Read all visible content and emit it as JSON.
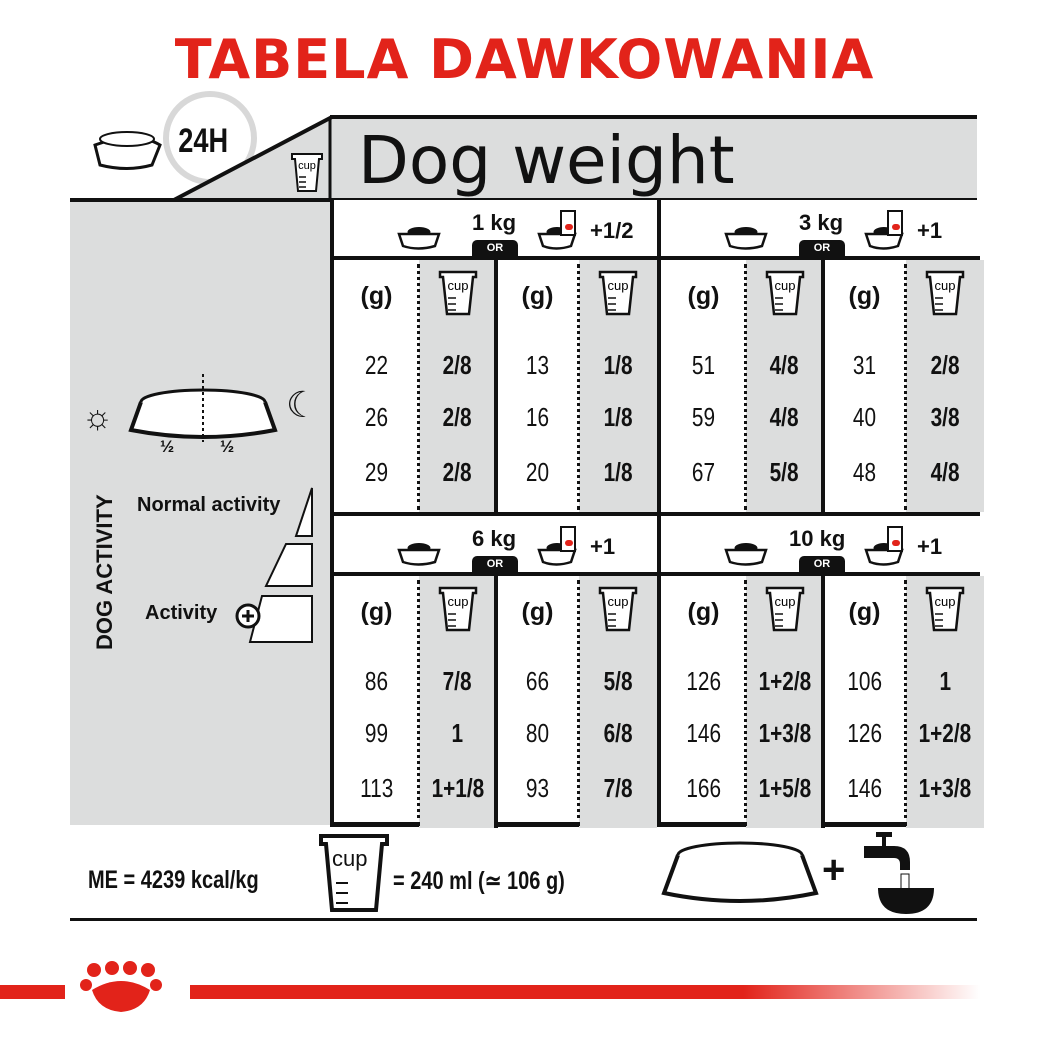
{
  "title": "TABELA DAWKOWANIA",
  "header": {
    "time_label": "24H",
    "main_title": "Dog weight",
    "cup_label": "cup"
  },
  "left_panel": {
    "half_left": "½",
    "half_right": "½",
    "vertical_label": "DOG ACTIVITY",
    "normal_activity": "Normal activity",
    "activity": "Activity"
  },
  "col_headers": {
    "grams": "(g)",
    "cup": "cup"
  },
  "or_label": "OR",
  "quadrants": [
    {
      "weight": "1 kg",
      "wet_addition": "+1/2",
      "dry_only": [
        [
          "22",
          "2/8"
        ],
        [
          "26",
          "2/8"
        ],
        [
          "29",
          "2/8"
        ]
      ],
      "with_wet": [
        [
          "13",
          "1/8"
        ],
        [
          "16",
          "1/8"
        ],
        [
          "20",
          "1/8"
        ]
      ]
    },
    {
      "weight": "3 kg",
      "wet_addition": "+1",
      "dry_only": [
        [
          "51",
          "4/8"
        ],
        [
          "59",
          "4/8"
        ],
        [
          "67",
          "5/8"
        ]
      ],
      "with_wet": [
        [
          "31",
          "2/8"
        ],
        [
          "40",
          "3/8"
        ],
        [
          "48",
          "4/8"
        ]
      ]
    },
    {
      "weight": "6 kg",
      "wet_addition": "+1",
      "dry_only": [
        [
          "86",
          "7/8"
        ],
        [
          "99",
          "1"
        ],
        [
          "113",
          "1+1/8"
        ]
      ],
      "with_wet": [
        [
          "66",
          "5/8"
        ],
        [
          "80",
          "6/8"
        ],
        [
          "93",
          "7/8"
        ]
      ]
    },
    {
      "weight": "10 kg",
      "wet_addition": "+1",
      "dry_only": [
        [
          "126",
          "1+2/8"
        ],
        [
          "146",
          "1+3/8"
        ],
        [
          "166",
          "1+5/8"
        ]
      ],
      "with_wet": [
        [
          "106",
          "1"
        ],
        [
          "126",
          "1+2/8"
        ],
        [
          "146",
          "1+3/8"
        ]
      ]
    }
  ],
  "footer": {
    "energy": "ME = 4239 kcal/kg",
    "cup_label": "cup",
    "cup_equiv": "= 240 ml (≃ 106 g)",
    "plus": "+"
  },
  "colors": {
    "brand_red": "#e2231a",
    "panel_gray": "#dcdddd"
  }
}
